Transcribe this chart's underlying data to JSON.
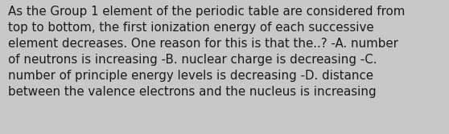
{
  "lines": [
    "As the Group 1 element of the periodic table are considered from",
    "top to bottom, the first ionization energy of each successive",
    "element decreases. One reason for this is that the..? -A. number",
    "of neutrons is increasing -B. nuclear charge is decreasing -C.",
    "number of principle energy levels is decreasing -D. distance",
    "between the valence electrons and the nucleus is increasing"
  ],
  "background_color": "#c8c8c8",
  "text_color": "#1a1a1a",
  "font_size": 10.8,
  "fig_width": 5.58,
  "fig_height": 1.67,
  "dpi": 100
}
